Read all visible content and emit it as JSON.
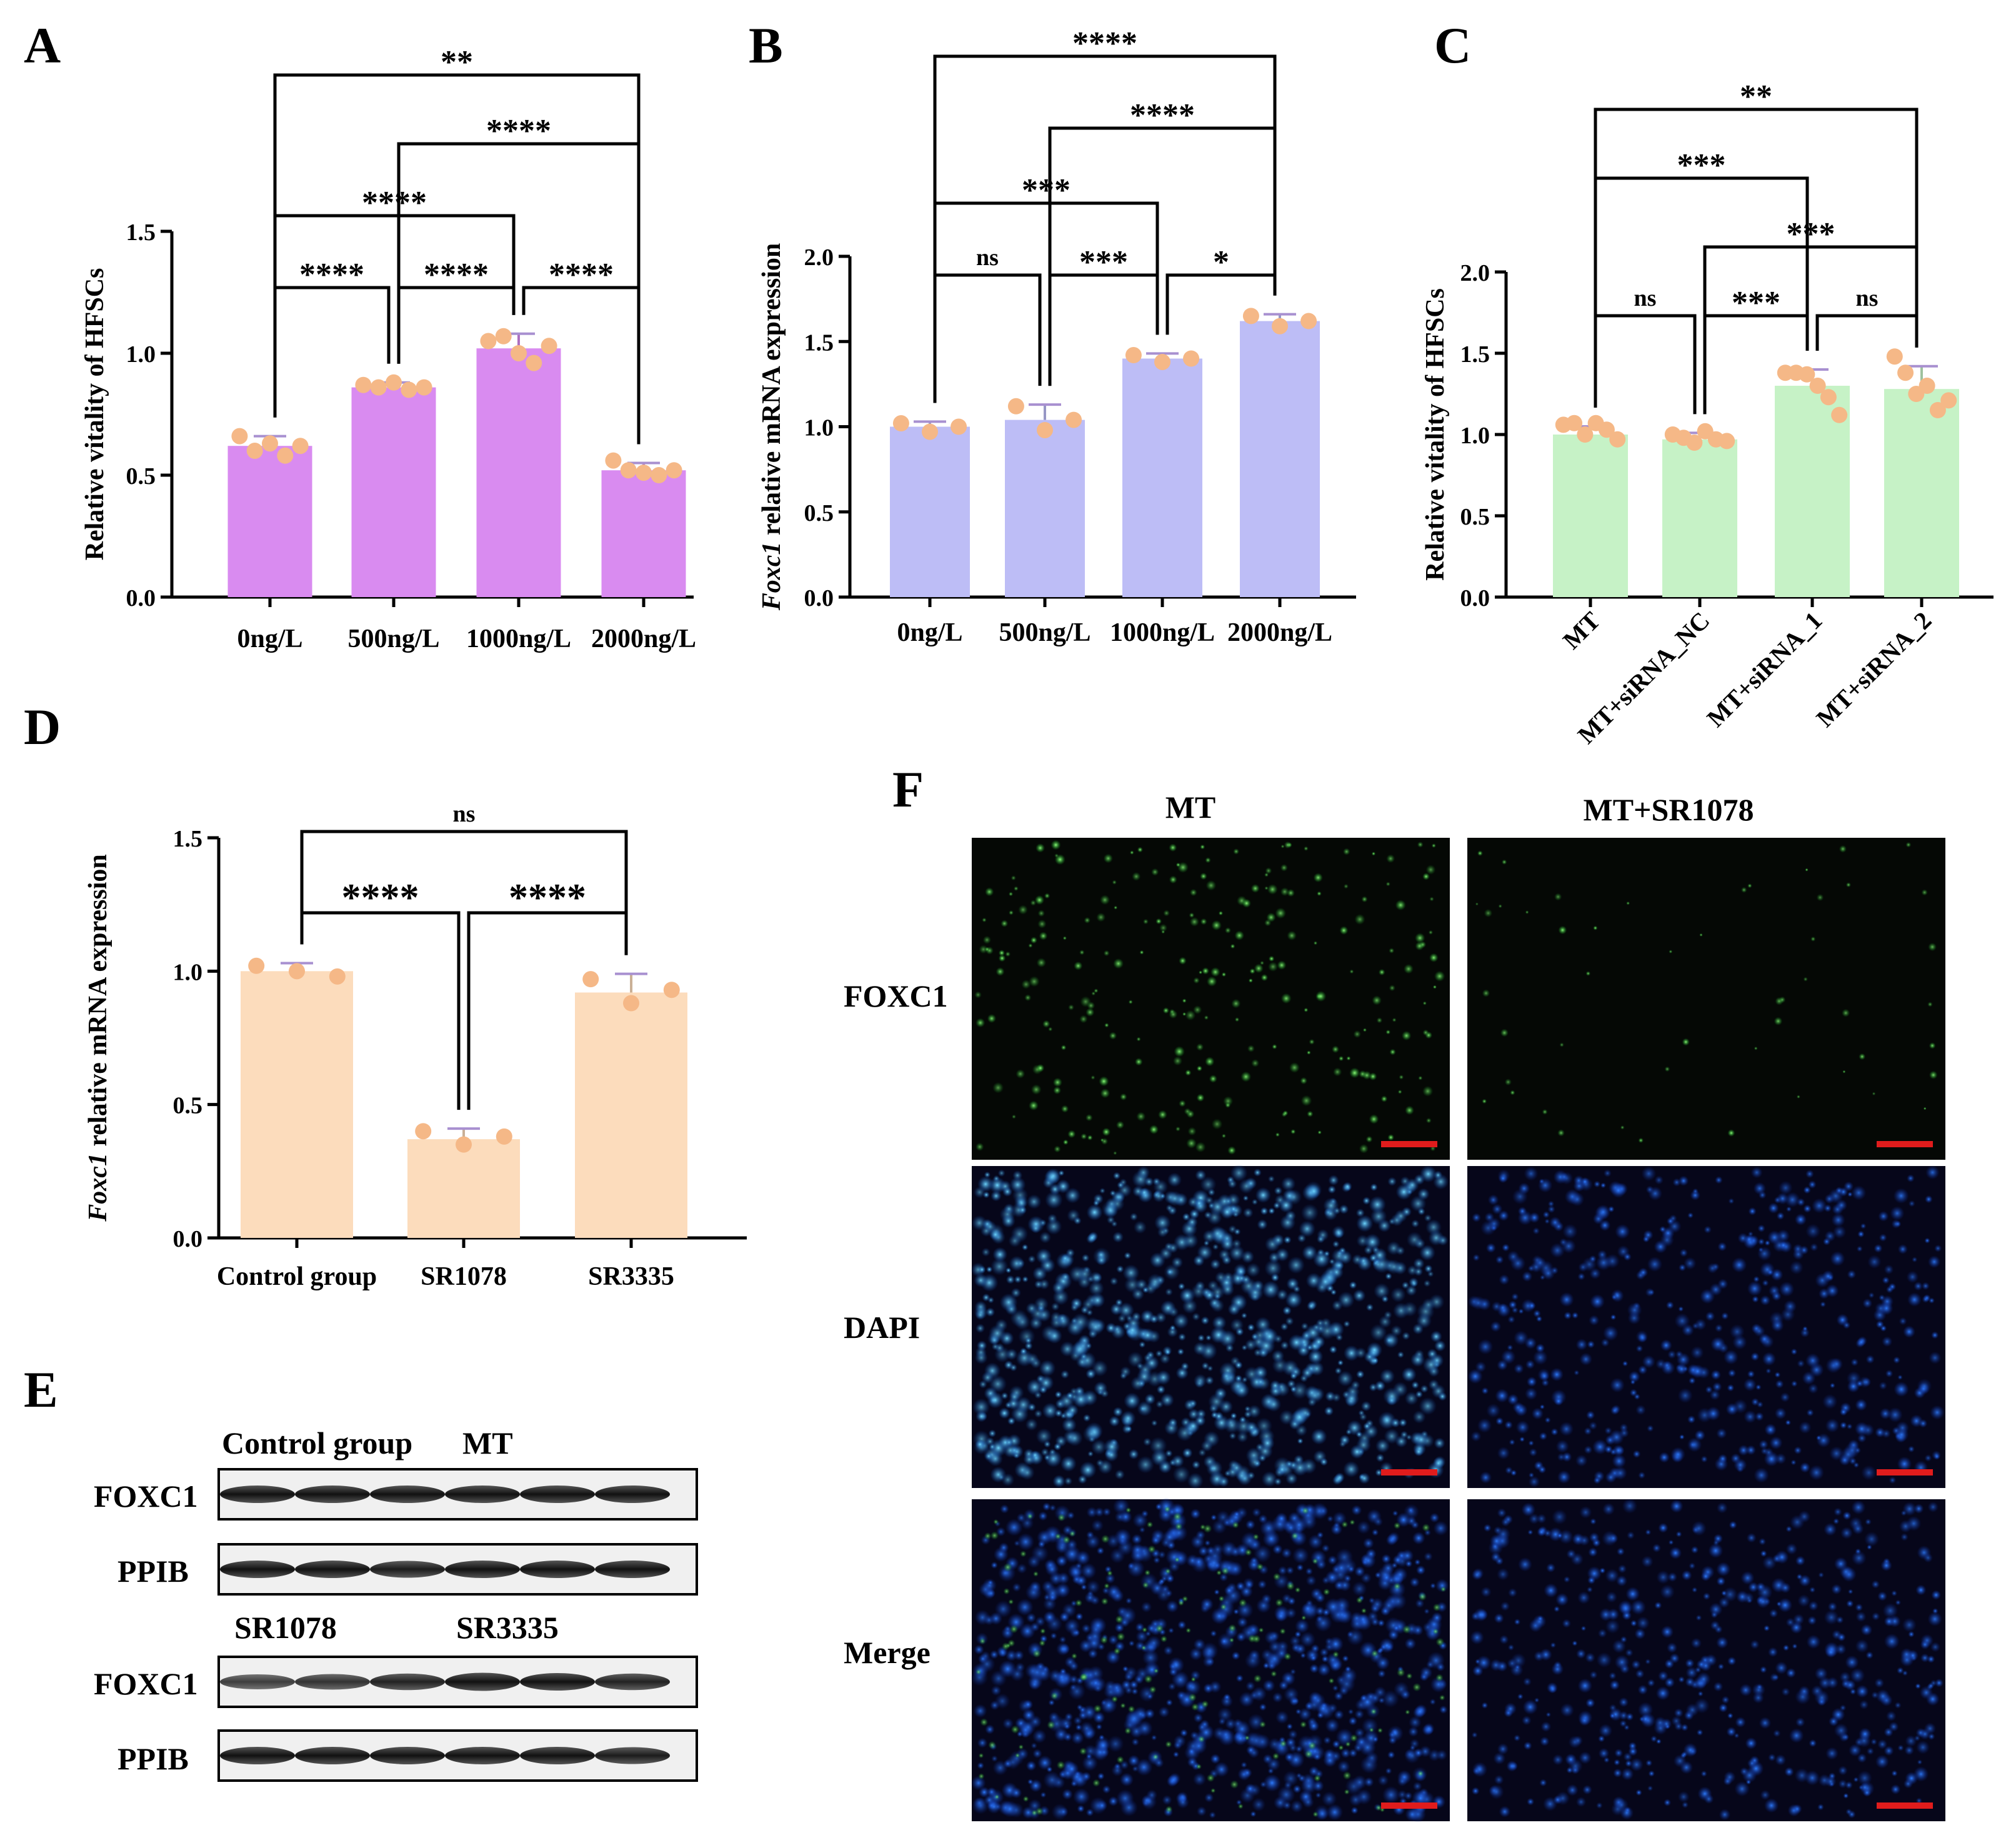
{
  "panels": [
    {
      "id": "A",
      "label": "A"
    },
    {
      "id": "B",
      "label": "B"
    },
    {
      "id": "C",
      "label": "C"
    },
    {
      "id": "D",
      "label": "D"
    },
    {
      "id": "E",
      "label": "E"
    },
    {
      "id": "F",
      "label": "F"
    }
  ],
  "chart_data": [
    {
      "panel": "A",
      "type": "bar",
      "categories": [
        "0ng/L",
        "500ng/L",
        "1000ng/L",
        "2000ng/L"
      ],
      "values": [
        0.62,
        0.86,
        1.02,
        0.52
      ],
      "errors": [
        0.04,
        0.02,
        0.06,
        0.03
      ],
      "points": [
        [
          0.66,
          0.6,
          0.63,
          0.58,
          0.62
        ],
        [
          0.87,
          0.86,
          0.88,
          0.85,
          0.86
        ],
        [
          1.05,
          1.07,
          1.0,
          0.96,
          1.03
        ],
        [
          0.56,
          0.52,
          0.51,
          0.5,
          0.52
        ]
      ],
      "ylabel": "Relative vitality of HFSCs",
      "ylim": [
        0,
        1.5
      ],
      "yticks": [
        "0.0",
        "0.5",
        "1.0",
        "1.5"
      ],
      "color": "#d98bf0",
      "brackets": [
        {
          "a": 0,
          "b": 1,
          "label": "****"
        },
        {
          "a": 1,
          "b": 2,
          "label": "****"
        },
        {
          "a": 2,
          "b": 3,
          "label": "****"
        },
        {
          "a": 0,
          "b": 2,
          "label": "****"
        },
        {
          "a": 1,
          "b": 3,
          "label": "****"
        },
        {
          "a": 0,
          "b": 3,
          "label": "**"
        }
      ]
    },
    {
      "panel": "B",
      "type": "bar",
      "categories": [
        "0ng/L",
        "500ng/L",
        "1000ng/L",
        "2000ng/L"
      ],
      "values": [
        1.0,
        1.04,
        1.4,
        1.62
      ],
      "errors": [
        0.03,
        0.09,
        0.03,
        0.04
      ],
      "points": [
        [
          1.02,
          0.97,
          1.0
        ],
        [
          1.12,
          0.98,
          1.04
        ],
        [
          1.42,
          1.38,
          1.4
        ],
        [
          1.65,
          1.59,
          1.62
        ]
      ],
      "ylabel_italic": "Foxc1",
      "ylabel": " relative mRNA expression",
      "ylim": [
        0,
        2.0
      ],
      "yticks": [
        "0.0",
        "0.5",
        "1.0",
        "1.5",
        "2.0"
      ],
      "color": "#bdbdf6",
      "brackets": [
        {
          "a": 0,
          "b": 1,
          "label": "ns"
        },
        {
          "a": 1,
          "b": 2,
          "label": "***"
        },
        {
          "a": 2,
          "b": 3,
          "label": "*"
        },
        {
          "a": 0,
          "b": 2,
          "label": "***"
        },
        {
          "a": 1,
          "b": 3,
          "label": "****"
        },
        {
          "a": 0,
          "b": 3,
          "label": "****"
        }
      ]
    },
    {
      "panel": "C",
      "type": "bar",
      "categories": [
        "MT",
        "MT+siRNA_NC",
        "MT+siRNA_1",
        "MT+siRNA_2"
      ],
      "values": [
        1.0,
        0.97,
        1.3,
        1.28
      ],
      "errors": [
        0.05,
        0.04,
        0.1,
        0.14
      ],
      "points": [
        [
          1.06,
          1.07,
          1.0,
          1.07,
          1.03,
          0.97
        ],
        [
          1.0,
          0.98,
          0.95,
          1.02,
          0.97,
          0.96
        ],
        [
          1.38,
          1.38,
          1.37,
          1.3,
          1.23,
          1.12
        ],
        [
          1.48,
          1.38,
          1.25,
          1.3,
          1.15,
          1.21
        ]
      ],
      "ylabel": "Relative vitality of HFSCs",
      "ylim": [
        0,
        2.0
      ],
      "yticks": [
        "0.0",
        "0.5",
        "1.0",
        "1.5",
        "2.0"
      ],
      "color": "#c6f2c6",
      "brackets": [
        {
          "a": 0,
          "b": 1,
          "label": "ns"
        },
        {
          "a": 1,
          "b": 2,
          "label": "***"
        },
        {
          "a": 2,
          "b": 3,
          "label": "ns"
        },
        {
          "a": 1,
          "b": 3,
          "label": "***"
        },
        {
          "a": 0,
          "b": 2,
          "label": "***"
        },
        {
          "a": 0,
          "b": 3,
          "label": "**"
        }
      ]
    },
    {
      "panel": "D",
      "type": "bar",
      "categories": [
        "Control group",
        "SR1078",
        "SR3335"
      ],
      "values": [
        1.0,
        0.37,
        0.92
      ],
      "errors": [
        0.03,
        0.04,
        0.07
      ],
      "points": [
        [
          1.02,
          1.0,
          0.98
        ],
        [
          0.4,
          0.35,
          0.38
        ],
        [
          0.97,
          0.88,
          0.93
        ]
      ],
      "ylabel_italic": "Foxc1",
      "ylabel": " relative mRNA expression",
      "ylim": [
        0,
        1.5
      ],
      "yticks": [
        "0.0",
        "0.5",
        "1.0",
        "1.5"
      ],
      "color": "#fcdcbc",
      "brackets": [
        {
          "a": 0,
          "b": 1,
          "label": "****"
        },
        {
          "a": 1,
          "b": 2,
          "label": "****"
        },
        {
          "a": 0,
          "b": 2,
          "label": "ns"
        }
      ]
    }
  ],
  "western": {
    "top_headers": [
      "Control group",
      "MT"
    ],
    "bottom_headers": [
      "SR1078",
      "SR3335"
    ],
    "row_labels": [
      "FOXC1",
      "PPIB",
      "FOXC1",
      "PPIB"
    ]
  },
  "microscopy": {
    "col_headers": [
      "MT",
      "MT+SR1078"
    ],
    "row_labels": [
      "FOXC1",
      "DAPI",
      "Merge"
    ],
    "scale_bar_color": "#e01c1c"
  },
  "colors": {
    "dot": "#f5b887",
    "axis": "#000000"
  }
}
